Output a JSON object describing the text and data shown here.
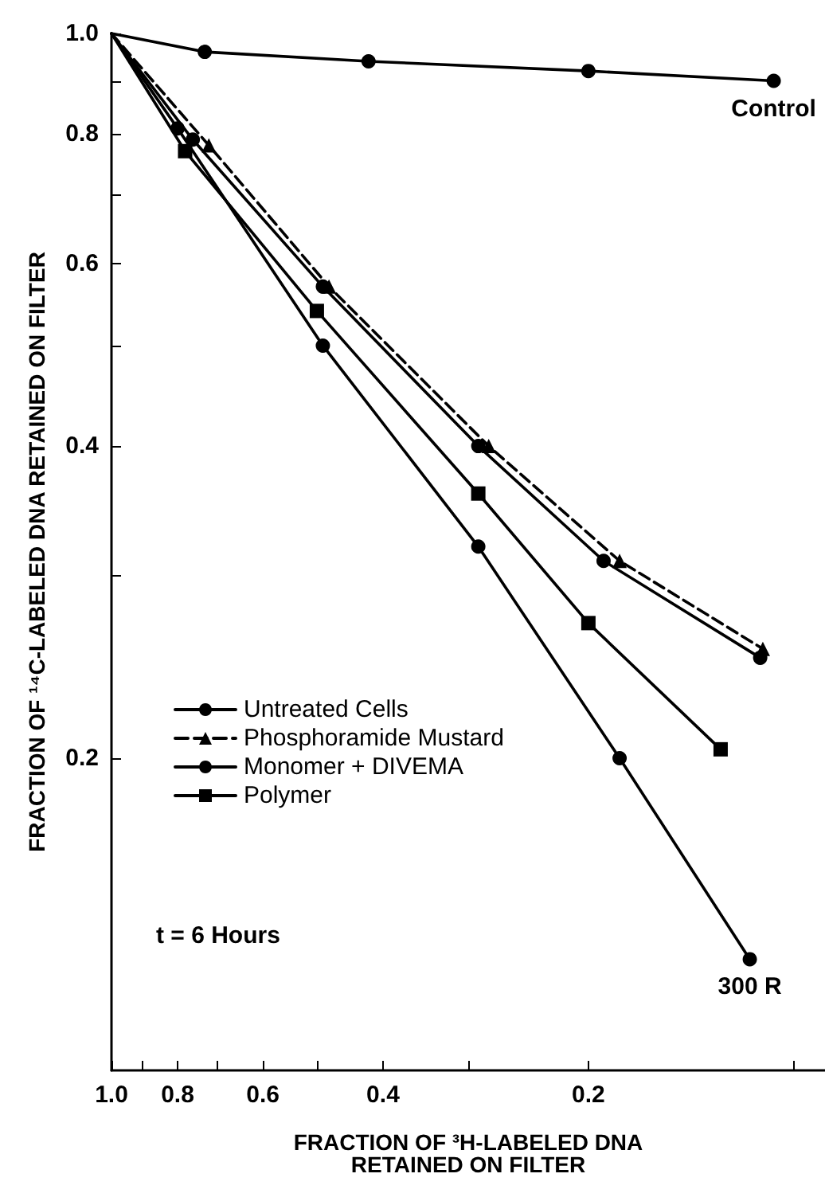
{
  "chart_data": {
    "type": "line",
    "xlabel": "FRACTION OF ³H-LABELED DNA\nRETAINED ON FILTER",
    "ylabel": "FRACTION OF ¹⁴C-LABELED DNA RETAINED ON FILTER",
    "log": "xy",
    "xlim": [
      1.0,
      0.09
    ],
    "ylim": [
      0.1,
      1.0
    ],
    "xticks": [
      {
        "value": 1.0,
        "label": "1.0"
      },
      {
        "value": 0.9,
        "label": null
      },
      0.8,
      {
        "value": 0.7,
        "label": null
      },
      0.6,
      {
        "value": 0.5,
        "label": null
      },
      0.4,
      {
        "value": 0.3,
        "label": null
      },
      0.2,
      {
        "value": 0.1,
        "label": null
      }
    ],
    "yticks": [
      0.2,
      {
        "value": 0.3,
        "label": null
      },
      0.4,
      {
        "value": 0.5,
        "label": null
      },
      0.6,
      {
        "value": 0.7,
        "label": null
      },
      0.8,
      {
        "value": 0.9,
        "label": null
      },
      {
        "value": 1.0,
        "label": "1.0"
      }
    ],
    "grid": false,
    "legend": "left",
    "series": [
      {
        "color": "#000000",
        "marker": "circle",
        "line_style": "solid",
        "x": [
          1.0,
          0.73,
          0.42,
          0.2,
          0.107
        ],
        "values": [
          1.0,
          0.96,
          0.94,
          0.92,
          0.9
        ]
      },
      {
        "name": "Untreated Cells",
        "color": "#000000",
        "marker": "circle",
        "line_style": "solid",
        "x": [
          1.0,
          0.8,
          0.49,
          0.29,
          0.18,
          0.116
        ],
        "values": [
          1.0,
          0.81,
          0.5,
          0.32,
          0.2,
          0.128
        ]
      },
      {
        "name": "Phosphoramide Mustard",
        "color": "#000000",
        "marker": "triangle",
        "line_style": "dashed",
        "x": [
          1.0,
          0.72,
          0.48,
          0.28,
          0.18,
          0.111
        ],
        "values": [
          1.0,
          0.78,
          0.57,
          0.4,
          0.31,
          0.255
        ]
      },
      {
        "name": "Monomer + DIVEMA",
        "color": "#000000",
        "marker": "circle",
        "line_style": "solid",
        "x": [
          1.0,
          0.76,
          0.49,
          0.29,
          0.19,
          0.112
        ],
        "values": [
          1.0,
          0.79,
          0.57,
          0.4,
          0.31,
          0.25
        ]
      },
      {
        "name": "Polymer",
        "color": "#000000",
        "marker": "square",
        "line_style": "solid",
        "x": [
          1.0,
          0.78,
          0.5,
          0.29,
          0.2,
          0.128
        ],
        "values": [
          1.0,
          0.77,
          0.54,
          0.36,
          0.27,
          0.204
        ]
      }
    ],
    "annotations": [
      {
        "text": "Control",
        "x": 0.107,
        "y": 0.9
      },
      {
        "text": "300 R",
        "x": 0.116,
        "y": 0.128
      },
      "t = 6 Hours"
    ]
  }
}
